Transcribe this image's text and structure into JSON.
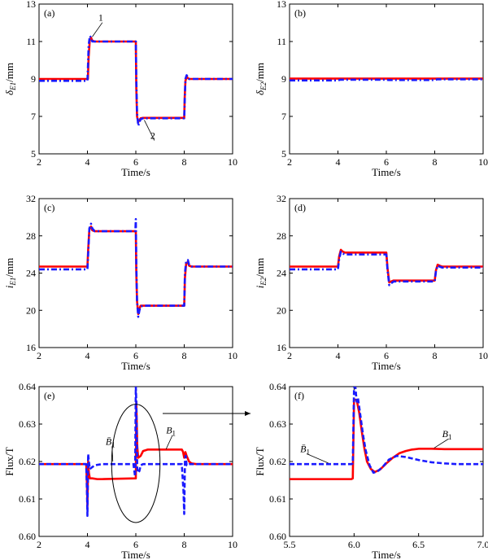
{
  "chart_data": [
    {
      "panel_label": "(a)",
      "type": "line",
      "xlabel": "Time/s",
      "ylabel": "δ",
      "ylabel_sub": "E1",
      "ylabel_unit": "/mm",
      "xlim": [
        2,
        10
      ],
      "ylim": [
        5,
        13
      ],
      "xticks": [
        "2",
        "4",
        "6",
        "8",
        "10"
      ],
      "yticks": [
        "5",
        "7",
        "9",
        "11",
        "13"
      ],
      "series": [
        {
          "color": "#ff0000",
          "style": "solid",
          "x": [
            2,
            4.02,
            4.05,
            4.1,
            4.15,
            4.2,
            4.3,
            6.0,
            6.02,
            6.05,
            6.1,
            6.15,
            6.2,
            6.3,
            8.0,
            8.02,
            8.05,
            8.1,
            8.15,
            8.2,
            8.3,
            10
          ],
          "y": [
            9,
            9,
            10.2,
            11.1,
            11.2,
            11.05,
            11.0,
            11.0,
            8.5,
            7.0,
            6.7,
            6.8,
            6.9,
            6.92,
            6.92,
            8.0,
            8.9,
            9.1,
            9.05,
            9.0,
            9.0,
            9.0
          ]
        },
        {
          "color": "#1a1aff",
          "style": "dashdot",
          "x": [
            2,
            4.0,
            4.02,
            4.05,
            4.1,
            4.15,
            4.2,
            4.3,
            6.0,
            6.02,
            6.05,
            6.1,
            6.15,
            6.2,
            6.3,
            8.0,
            8.02,
            8.05,
            8.1,
            8.15,
            8.2,
            8.3,
            10
          ],
          "y": [
            8.9,
            8.9,
            9.6,
            10.8,
            11.3,
            11.2,
            11.0,
            11.0,
            11.0,
            9.0,
            7.2,
            6.5,
            6.7,
            6.85,
            6.9,
            6.9,
            7.8,
            9.0,
            9.2,
            9.1,
            9.0,
            9.0,
            9.0
          ]
        }
      ],
      "annotations": [
        {
          "text": "1",
          "x": 4.55,
          "y": 12.1,
          "tx": 4.2,
          "ty": 11.25
        },
        {
          "text": "2",
          "x": 6.7,
          "y": 5.8,
          "tx": 6.35,
          "ty": 6.8
        }
      ]
    },
    {
      "panel_label": "(b)",
      "type": "line",
      "xlabel": "Time/s",
      "ylabel": "δ",
      "ylabel_sub": "E2",
      "ylabel_unit": "/mm",
      "xlim": [
        2,
        10
      ],
      "ylim": [
        5,
        13
      ],
      "xticks": [
        "2",
        "4",
        "6",
        "8",
        "10"
      ],
      "yticks": [
        "5",
        "7",
        "9",
        "11",
        "13"
      ],
      "series": [
        {
          "color": "#ff0000",
          "style": "solid",
          "x": [
            2,
            10
          ],
          "y": [
            9.02,
            9.02
          ]
        },
        {
          "color": "#1a1aff",
          "style": "dashdot",
          "x": [
            2,
            4,
            4.1,
            6,
            6.1,
            8,
            8.1,
            10
          ],
          "y": [
            8.92,
            8.92,
            8.96,
            8.96,
            8.94,
            8.94,
            8.98,
            8.98
          ]
        }
      ],
      "annotations": []
    },
    {
      "panel_label": "(c)",
      "type": "line",
      "xlabel": "Time/s",
      "ylabel": "i",
      "ylabel_sub": "E1",
      "ylabel_unit": "/mm",
      "xlim": [
        2,
        10
      ],
      "ylim": [
        16,
        32
      ],
      "xticks": [
        "2",
        "4",
        "6",
        "8",
        "10"
      ],
      "yticks": [
        "16",
        "20",
        "24",
        "28",
        "32"
      ],
      "series": [
        {
          "color": "#ff0000",
          "style": "solid",
          "x": [
            2,
            4.0,
            4.03,
            4.08,
            4.15,
            4.2,
            4.3,
            6.0,
            6.02,
            6.05,
            6.1,
            6.15,
            6.2,
            6.3,
            8.0,
            8.03,
            8.08,
            8.15,
            8.2,
            8.3,
            10
          ],
          "y": [
            24.7,
            24.7,
            26.5,
            28.7,
            29.0,
            28.6,
            28.5,
            28.5,
            24.0,
            21.0,
            19.6,
            20.2,
            20.5,
            20.5,
            20.5,
            23.5,
            25.0,
            25.2,
            24.8,
            24.7,
            24.7
          ]
        },
        {
          "color": "#1a1aff",
          "style": "dashdot",
          "x": [
            2,
            4.0,
            4.03,
            4.08,
            4.15,
            4.2,
            4.3,
            5.98,
            6.0,
            6.02,
            6.05,
            6.1,
            6.15,
            6.2,
            6.3,
            8.0,
            8.03,
            8.08,
            8.15,
            8.2,
            8.3,
            10
          ],
          "y": [
            24.4,
            24.4,
            26.0,
            28.8,
            29.3,
            28.8,
            28.5,
            28.5,
            29.8,
            25.0,
            21.0,
            19.3,
            20.0,
            20.4,
            20.5,
            20.5,
            24.0,
            25.3,
            25.4,
            24.9,
            24.7,
            24.7
          ]
        }
      ],
      "annotations": []
    },
    {
      "panel_label": "(d)",
      "type": "line",
      "xlabel": "Time/s",
      "ylabel": "i",
      "ylabel_sub": "E2",
      "ylabel_unit": "/mm",
      "xlim": [
        2,
        10
      ],
      "ylim": [
        16,
        32
      ],
      "xticks": [
        "2",
        "4",
        "6",
        "8",
        "10"
      ],
      "yticks": [
        "16",
        "20",
        "24",
        "28",
        "32"
      ],
      "series": [
        {
          "color": "#ff0000",
          "style": "solid",
          "x": [
            2,
            4.0,
            4.05,
            4.12,
            4.2,
            4.3,
            6.0,
            6.05,
            6.12,
            6.2,
            6.3,
            8.0,
            8.05,
            8.12,
            8.2,
            8.3,
            10
          ],
          "y": [
            24.7,
            24.7,
            25.8,
            26.5,
            26.3,
            26.2,
            26.2,
            24.5,
            23.0,
            23.1,
            23.2,
            23.2,
            24.3,
            24.9,
            24.8,
            24.7,
            24.7
          ]
        },
        {
          "color": "#1a1aff",
          "style": "dashdot",
          "x": [
            2,
            4.0,
            4.05,
            4.12,
            4.2,
            4.3,
            6.0,
            6.05,
            6.12,
            6.2,
            6.3,
            8.0,
            8.05,
            8.12,
            8.2,
            8.3,
            10
          ],
          "y": [
            24.4,
            24.4,
            25.5,
            26.3,
            26.1,
            26.0,
            26.0,
            24.3,
            22.7,
            22.9,
            23.1,
            23.1,
            24.2,
            24.8,
            24.7,
            24.6,
            24.6
          ]
        }
      ],
      "annotations": []
    },
    {
      "panel_label": "(e)",
      "type": "line",
      "xlabel": "Time/s",
      "ylabel": "Flux/T",
      "xlim": [
        2,
        10
      ],
      "ylim": [
        0.6,
        0.64
      ],
      "xticks": [
        "2",
        "4",
        "6",
        "8",
        "10"
      ],
      "yticks": [
        "0.60",
        "0.61",
        "0.62",
        "0.63",
        "0.64"
      ],
      "series": [
        {
          "name": "B",
          "name_sub": "1",
          "color": "#ff0000",
          "style": "solid",
          "x": [
            2,
            3.95,
            3.98,
            4.0,
            4.03,
            4.06,
            4.1,
            4.2,
            4.4,
            4.6,
            6.0,
            6.02,
            6.04,
            6.06,
            6.1,
            6.2,
            6.3,
            6.5,
            6.7,
            7.9,
            7.95,
            8.0,
            8.05,
            8.1,
            8.2,
            8.3,
            8.5,
            10
          ],
          "y": [
            0.6193,
            0.6193,
            0.614,
            0.608,
            0.62,
            0.617,
            0.6155,
            0.6155,
            0.6153,
            0.6153,
            0.6155,
            0.636,
            0.63,
            0.624,
            0.621,
            0.6215,
            0.6228,
            0.6232,
            0.6232,
            0.6232,
            0.6226,
            0.621,
            0.6225,
            0.6215,
            0.62,
            0.6195,
            0.6193,
            0.6193
          ]
        },
        {
          "name": "B̄",
          "name_sub": "1",
          "color": "#1a1aff",
          "style": "dashed",
          "x": [
            2,
            3.95,
            3.98,
            4.0,
            4.03,
            4.06,
            4.1,
            4.3,
            4.6,
            5.9,
            5.97,
            6.0,
            6.02,
            6.04,
            6.06,
            6.1,
            6.15,
            6.2,
            6.3,
            6.5,
            7.9,
            7.97,
            8.0,
            8.03,
            8.06,
            8.1,
            8.2,
            8.4,
            10
          ],
          "y": [
            0.6193,
            0.6193,
            0.612,
            0.6055,
            0.622,
            0.62,
            0.618,
            0.619,
            0.6193,
            0.6193,
            0.616,
            0.64,
            0.636,
            0.626,
            0.618,
            0.617,
            0.6175,
            0.619,
            0.6193,
            0.6193,
            0.6193,
            0.612,
            0.606,
            0.62,
            0.6215,
            0.619,
            0.6193,
            0.6193,
            0.6193
          ]
        }
      ],
      "annotations": [
        {
          "text": "B̄",
          "sub": "1",
          "x": 4.95,
          "y": 0.6245,
          "tx": 5.05,
          "ty": 0.62
        },
        {
          "text": "B",
          "sub": "1",
          "x": 7.45,
          "y": 0.6275,
          "tx": 7.25,
          "ty": 0.6233
        }
      ],
      "ellipse": {
        "cx": 6.0,
        "cy": 0.6195,
        "rx": 1.0,
        "ry": 0.0158
      },
      "zoom_arrow": {
        "to_panel": "(f)"
      }
    },
    {
      "panel_label": "(f)",
      "type": "line",
      "xlabel": "Time/s",
      "ylabel": "Flux/T",
      "xlim": [
        5.5,
        7.0
      ],
      "ylim": [
        0.6,
        0.64
      ],
      "xticks": [
        "5.5",
        "6.0",
        "6.5",
        "7.0"
      ],
      "yticks": [
        "0.60",
        "0.61",
        "0.62",
        "0.63",
        "0.64"
      ],
      "series": [
        {
          "name": "B",
          "name_sub": "1",
          "color": "#ff0000",
          "style": "solid",
          "x": [
            5.5,
            5.98,
            5.99,
            6.0,
            6.02,
            6.04,
            6.06,
            6.08,
            6.1,
            6.13,
            6.16,
            6.2,
            6.25,
            6.3,
            6.35,
            6.4,
            6.45,
            6.5,
            6.6,
            6.7,
            7.0
          ],
          "y": [
            0.6153,
            0.6153,
            0.6155,
            0.6365,
            0.6365,
            0.633,
            0.628,
            0.6235,
            0.62,
            0.618,
            0.6172,
            0.6178,
            0.6195,
            0.621,
            0.6222,
            0.6228,
            0.6232,
            0.6234,
            0.6234,
            0.6233,
            0.6233
          ]
        },
        {
          "name": "B̄",
          "name_sub": "1",
          "color": "#1a1aff",
          "style": "dashed",
          "x": [
            5.5,
            5.98,
            5.99,
            6.0,
            6.01,
            6.02,
            6.03,
            6.05,
            6.07,
            6.09,
            6.12,
            6.15,
            6.18,
            6.22,
            6.27,
            6.33,
            6.4,
            6.5,
            6.6,
            6.7,
            6.8,
            7.0
          ],
          "y": [
            0.6193,
            0.6193,
            0.6195,
            0.64,
            0.64,
            0.636,
            0.637,
            0.632,
            0.627,
            0.623,
            0.619,
            0.617,
            0.6173,
            0.6185,
            0.6205,
            0.6215,
            0.6212,
            0.6204,
            0.6198,
            0.6195,
            0.6193,
            0.6193
          ]
        }
      ],
      "annotations": [
        {
          "text": "B̄",
          "sub": "1",
          "x": 5.62,
          "y": 0.6225,
          "tx": 5.8,
          "ty": 0.6196
        },
        {
          "text": "B",
          "sub": "1",
          "x": 6.72,
          "y": 0.6265,
          "tx": 6.62,
          "ty": 0.6236
        }
      ]
    }
  ]
}
